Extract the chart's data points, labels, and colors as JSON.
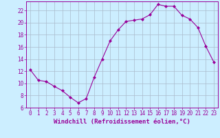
{
  "x": [
    0,
    1,
    2,
    3,
    4,
    5,
    6,
    7,
    8,
    9,
    10,
    11,
    12,
    13,
    14,
    15,
    16,
    17,
    18,
    19,
    20,
    21,
    22,
    23
  ],
  "y": [
    12.2,
    10.5,
    10.3,
    9.5,
    8.8,
    7.7,
    6.8,
    7.5,
    11.0,
    14.0,
    17.0,
    18.8,
    20.2,
    20.4,
    20.6,
    21.3,
    23.0,
    22.7,
    22.7,
    21.2,
    20.6,
    19.2,
    16.1,
    13.5
  ],
  "line_color": "#990099",
  "marker": "D",
  "marker_size": 2.0,
  "bg_color": "#cceeff",
  "grid_color": "#aabbcc",
  "xlabel": "Windchill (Refroidissement éolien,°C)",
  "xlabel_color": "#990099",
  "tick_color": "#990099",
  "axis_color": "#990099",
  "ylim": [
    6,
    23.5
  ],
  "xlim": [
    -0.5,
    23.5
  ],
  "yticks": [
    6,
    8,
    10,
    12,
    14,
    16,
    18,
    20,
    22
  ],
  "xticks": [
    0,
    1,
    2,
    3,
    4,
    5,
    6,
    7,
    8,
    9,
    10,
    11,
    12,
    13,
    14,
    15,
    16,
    17,
    18,
    19,
    20,
    21,
    22,
    23
  ],
  "tick_fontsize": 5.5,
  "xlabel_fontsize": 6.5,
  "linewidth": 0.8
}
